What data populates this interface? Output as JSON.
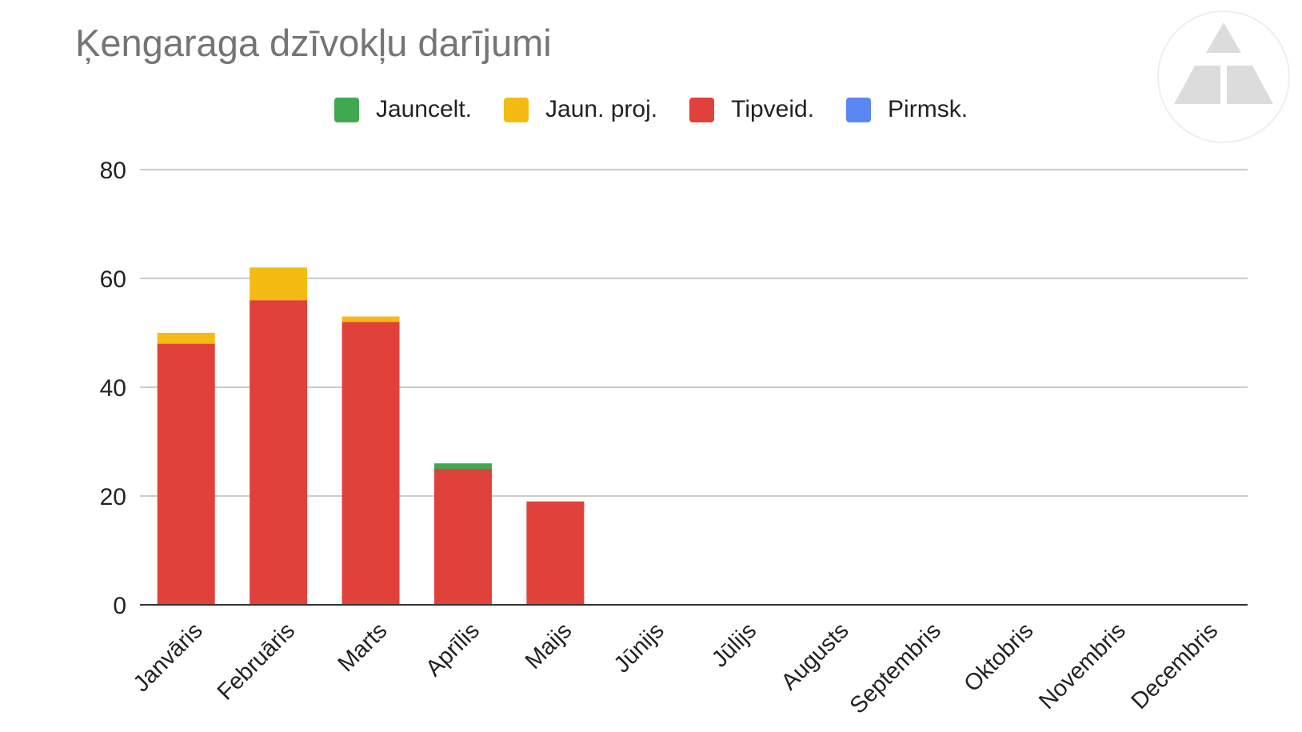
{
  "chart_data": {
    "type": "bar",
    "stacked": true,
    "title": "Ķengaraga dzīvokļu darījumi",
    "xlabel": "",
    "ylabel": "",
    "ylim": [
      0,
      80
    ],
    "yticks": [
      0,
      20,
      40,
      60,
      80
    ],
    "grid": true,
    "legend_position": "top",
    "categories": [
      "Janvāris",
      "Februāris",
      "Marts",
      "Aprīlis",
      "Maijs",
      "Jūnijs",
      "Jūlijs",
      "Augusts",
      "Septembris",
      "Oktobris",
      "Novembris",
      "Decembris"
    ],
    "series": [
      {
        "name": "Jauncelt.",
        "color": "#3fa951",
        "values": [
          0,
          0,
          0,
          1,
          0,
          0,
          0,
          0,
          0,
          0,
          0,
          0
        ]
      },
      {
        "name": "Jaun. proj.",
        "color": "#f4bc12",
        "values": [
          2,
          6,
          1,
          0,
          0,
          0,
          0,
          0,
          0,
          0,
          0,
          0
        ]
      },
      {
        "name": "Tipveid.",
        "color": "#e1413b",
        "values": [
          48,
          56,
          52,
          25,
          19,
          0,
          0,
          0,
          0,
          0,
          0,
          0
        ]
      },
      {
        "name": "Pirmsk.",
        "color": "#5b87f2",
        "values": [
          0,
          0,
          0,
          0,
          0,
          0,
          0,
          0,
          0,
          0,
          0,
          0
        ]
      }
    ],
    "stack_order": [
      "Tipveid.",
      "Pirmsk.",
      "Jaun. proj.",
      "Jauncelt."
    ]
  },
  "logo": {
    "icon": "triangle-logo-icon"
  }
}
